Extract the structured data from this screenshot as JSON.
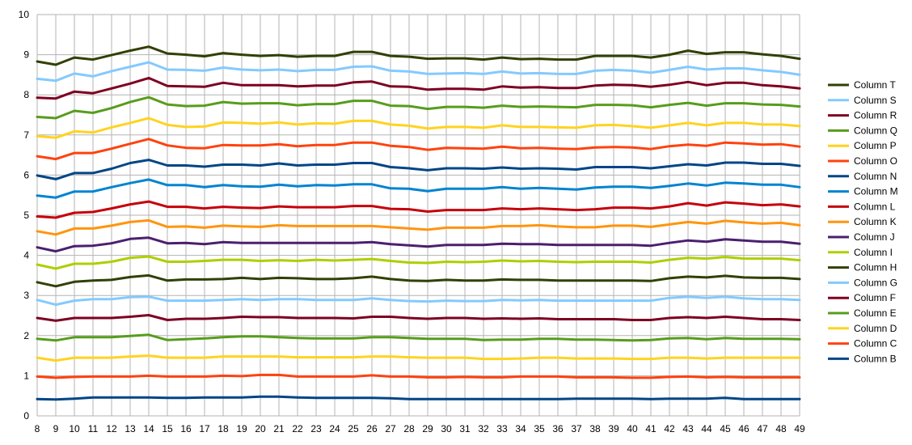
{
  "chart_data": {
    "type": "line",
    "title": "",
    "xlabel": "",
    "ylabel": "",
    "x": [
      8,
      9,
      10,
      11,
      12,
      13,
      14,
      15,
      16,
      17,
      18,
      19,
      20,
      21,
      22,
      23,
      24,
      25,
      26,
      27,
      28,
      29,
      30,
      31,
      32,
      33,
      34,
      35,
      36,
      37,
      38,
      39,
      40,
      41,
      42,
      43,
      44,
      45,
      46,
      47,
      48,
      49
    ],
    "ylim": [
      0,
      10
    ],
    "yticks": [
      0,
      1,
      2,
      3,
      4,
      5,
      6,
      7,
      8,
      9,
      10
    ],
    "grid": true,
    "legend_position": "right",
    "series": [
      {
        "name": "Column T",
        "color": "#314004",
        "values": [
          8.83,
          8.75,
          8.93,
          8.88,
          8.99,
          9.1,
          9.2,
          9.03,
          9.0,
          8.96,
          9.04,
          9.0,
          8.97,
          8.99,
          8.95,
          8.97,
          8.97,
          9.07,
          9.07,
          8.97,
          8.95,
          8.9,
          8.91,
          8.91,
          8.88,
          8.93,
          8.89,
          8.9,
          8.88,
          8.88,
          8.97,
          8.97,
          8.97,
          8.93,
          9.0,
          9.1,
          9.02,
          9.06,
          9.06,
          9.01,
          8.97,
          8.9
        ]
      },
      {
        "name": "Column S",
        "color": "#83caff",
        "values": [
          8.4,
          8.35,
          8.53,
          8.46,
          8.59,
          8.7,
          8.81,
          8.63,
          8.62,
          8.6,
          8.68,
          8.63,
          8.61,
          8.63,
          8.59,
          8.62,
          8.62,
          8.7,
          8.71,
          8.6,
          8.58,
          8.52,
          8.53,
          8.54,
          8.52,
          8.58,
          8.53,
          8.54,
          8.52,
          8.52,
          8.6,
          8.62,
          8.6,
          8.55,
          8.62,
          8.7,
          8.63,
          8.66,
          8.66,
          8.61,
          8.57,
          8.5
        ]
      },
      {
        "name": "Column R",
        "color": "#7e0021",
        "values": [
          7.93,
          7.91,
          8.08,
          8.04,
          8.16,
          8.28,
          8.42,
          8.22,
          8.21,
          8.2,
          8.3,
          8.24,
          8.24,
          8.24,
          8.21,
          8.23,
          8.23,
          8.31,
          8.33,
          8.21,
          8.2,
          8.13,
          8.15,
          8.15,
          8.13,
          8.21,
          8.18,
          8.19,
          8.17,
          8.17,
          8.23,
          8.25,
          8.24,
          8.2,
          8.25,
          8.32,
          8.24,
          8.3,
          8.3,
          8.24,
          8.21,
          8.16
        ]
      },
      {
        "name": "Column Q",
        "color": "#579d1c",
        "values": [
          7.45,
          7.42,
          7.6,
          7.55,
          7.67,
          7.82,
          7.94,
          7.76,
          7.72,
          7.73,
          7.82,
          7.78,
          7.79,
          7.79,
          7.74,
          7.77,
          7.77,
          7.85,
          7.85,
          7.73,
          7.72,
          7.65,
          7.7,
          7.7,
          7.68,
          7.73,
          7.7,
          7.71,
          7.7,
          7.69,
          7.75,
          7.75,
          7.74,
          7.69,
          7.75,
          7.8,
          7.73,
          7.79,
          7.79,
          7.76,
          7.75,
          7.71
        ]
      },
      {
        "name": "Column P",
        "color": "#ffd320",
        "values": [
          6.97,
          6.93,
          7.09,
          7.06,
          7.19,
          7.3,
          7.42,
          7.25,
          7.2,
          7.21,
          7.31,
          7.3,
          7.28,
          7.31,
          7.26,
          7.29,
          7.28,
          7.35,
          7.35,
          7.26,
          7.23,
          7.16,
          7.2,
          7.2,
          7.18,
          7.24,
          7.2,
          7.2,
          7.19,
          7.18,
          7.24,
          7.25,
          7.22,
          7.18,
          7.24,
          7.3,
          7.24,
          7.3,
          7.3,
          7.26,
          7.26,
          7.22
        ]
      },
      {
        "name": "Column O",
        "color": "#ff420e",
        "values": [
          6.47,
          6.4,
          6.55,
          6.55,
          6.66,
          6.78,
          6.9,
          6.74,
          6.68,
          6.67,
          6.75,
          6.74,
          6.74,
          6.77,
          6.72,
          6.75,
          6.75,
          6.81,
          6.81,
          6.73,
          6.7,
          6.63,
          6.68,
          6.67,
          6.66,
          6.71,
          6.67,
          6.68,
          6.66,
          6.65,
          6.69,
          6.7,
          6.69,
          6.65,
          6.72,
          6.76,
          6.73,
          6.81,
          6.79,
          6.76,
          6.77,
          6.71
        ]
      },
      {
        "name": "Column N",
        "color": "#004586",
        "values": [
          5.99,
          5.9,
          6.05,
          6.05,
          6.16,
          6.3,
          6.38,
          6.24,
          6.24,
          6.21,
          6.26,
          6.26,
          6.24,
          6.29,
          6.24,
          6.26,
          6.26,
          6.3,
          6.3,
          6.2,
          6.17,
          6.12,
          6.17,
          6.17,
          6.16,
          6.19,
          6.16,
          6.17,
          6.16,
          6.14,
          6.2,
          6.2,
          6.2,
          6.17,
          6.22,
          6.27,
          6.24,
          6.31,
          6.31,
          6.28,
          6.28,
          6.23
        ]
      },
      {
        "name": "Column M",
        "color": "#0084d1",
        "values": [
          5.49,
          5.44,
          5.59,
          5.59,
          5.7,
          5.8,
          5.89,
          5.75,
          5.75,
          5.7,
          5.75,
          5.72,
          5.71,
          5.76,
          5.72,
          5.75,
          5.74,
          5.77,
          5.77,
          5.67,
          5.66,
          5.6,
          5.66,
          5.66,
          5.66,
          5.7,
          5.66,
          5.68,
          5.66,
          5.64,
          5.69,
          5.71,
          5.71,
          5.68,
          5.73,
          5.79,
          5.74,
          5.81,
          5.79,
          5.76,
          5.76,
          5.7
        ]
      },
      {
        "name": "Column L",
        "color": "#c5000b",
        "values": [
          4.97,
          4.94,
          5.06,
          5.08,
          5.17,
          5.27,
          5.34,
          5.21,
          5.21,
          5.17,
          5.21,
          5.19,
          5.18,
          5.22,
          5.2,
          5.2,
          5.2,
          5.23,
          5.23,
          5.16,
          5.15,
          5.09,
          5.13,
          5.13,
          5.13,
          5.17,
          5.15,
          5.17,
          5.15,
          5.13,
          5.15,
          5.19,
          5.19,
          5.17,
          5.22,
          5.3,
          5.24,
          5.32,
          5.29,
          5.25,
          5.27,
          5.22
        ]
      },
      {
        "name": "Column K",
        "color": "#ff950e",
        "values": [
          4.6,
          4.52,
          4.67,
          4.67,
          4.74,
          4.83,
          4.87,
          4.71,
          4.72,
          4.69,
          4.74,
          4.72,
          4.71,
          4.75,
          4.73,
          4.73,
          4.73,
          4.73,
          4.73,
          4.7,
          4.67,
          4.64,
          4.69,
          4.69,
          4.69,
          4.73,
          4.73,
          4.75,
          4.72,
          4.7,
          4.7,
          4.74,
          4.74,
          4.71,
          4.77,
          4.83,
          4.79,
          4.86,
          4.82,
          4.79,
          4.81,
          4.75
        ]
      },
      {
        "name": "Column J",
        "color": "#4b1f6f",
        "values": [
          4.2,
          4.1,
          4.23,
          4.24,
          4.3,
          4.41,
          4.44,
          4.3,
          4.31,
          4.28,
          4.33,
          4.31,
          4.31,
          4.31,
          4.31,
          4.31,
          4.31,
          4.31,
          4.33,
          4.28,
          4.25,
          4.22,
          4.26,
          4.26,
          4.26,
          4.29,
          4.28,
          4.28,
          4.26,
          4.26,
          4.26,
          4.26,
          4.26,
          4.24,
          4.31,
          4.37,
          4.34,
          4.4,
          4.37,
          4.34,
          4.34,
          4.29
        ]
      },
      {
        "name": "Column I",
        "color": "#aecf00",
        "values": [
          3.77,
          3.67,
          3.79,
          3.79,
          3.84,
          3.94,
          3.97,
          3.84,
          3.84,
          3.86,
          3.89,
          3.89,
          3.86,
          3.88,
          3.86,
          3.89,
          3.87,
          3.89,
          3.91,
          3.86,
          3.82,
          3.81,
          3.84,
          3.83,
          3.84,
          3.87,
          3.85,
          3.86,
          3.84,
          3.83,
          3.84,
          3.84,
          3.84,
          3.82,
          3.89,
          3.94,
          3.92,
          3.96,
          3.92,
          3.92,
          3.92,
          3.88
        ]
      },
      {
        "name": "Column H",
        "color": "#314004",
        "values": [
          3.33,
          3.23,
          3.34,
          3.37,
          3.39,
          3.46,
          3.5,
          3.37,
          3.4,
          3.4,
          3.41,
          3.44,
          3.41,
          3.44,
          3.43,
          3.41,
          3.41,
          3.43,
          3.47,
          3.41,
          3.37,
          3.36,
          3.39,
          3.37,
          3.37,
          3.4,
          3.39,
          3.39,
          3.37,
          3.37,
          3.37,
          3.37,
          3.37,
          3.36,
          3.43,
          3.47,
          3.45,
          3.49,
          3.45,
          3.44,
          3.44,
          3.41
        ]
      },
      {
        "name": "Column G",
        "color": "#83caff",
        "values": [
          2.89,
          2.77,
          2.87,
          2.91,
          2.91,
          2.96,
          2.97,
          2.87,
          2.87,
          2.87,
          2.89,
          2.91,
          2.89,
          2.91,
          2.91,
          2.89,
          2.89,
          2.89,
          2.93,
          2.89,
          2.86,
          2.85,
          2.87,
          2.86,
          2.86,
          2.89,
          2.88,
          2.89,
          2.87,
          2.87,
          2.87,
          2.87,
          2.87,
          2.87,
          2.94,
          2.97,
          2.94,
          2.97,
          2.93,
          2.91,
          2.91,
          2.89
        ]
      },
      {
        "name": "Column F",
        "color": "#7e0021",
        "values": [
          2.44,
          2.37,
          2.44,
          2.44,
          2.44,
          2.47,
          2.51,
          2.39,
          2.42,
          2.42,
          2.44,
          2.47,
          2.46,
          2.46,
          2.44,
          2.44,
          2.44,
          2.43,
          2.47,
          2.47,
          2.44,
          2.42,
          2.44,
          2.44,
          2.42,
          2.43,
          2.42,
          2.43,
          2.41,
          2.41,
          2.41,
          2.41,
          2.39,
          2.39,
          2.44,
          2.46,
          2.44,
          2.47,
          2.44,
          2.41,
          2.41,
          2.39
        ]
      },
      {
        "name": "Column E",
        "color": "#579d1c",
        "values": [
          1.92,
          1.88,
          1.96,
          1.96,
          1.96,
          1.99,
          2.02,
          1.89,
          1.91,
          1.93,
          1.96,
          1.98,
          1.98,
          1.96,
          1.94,
          1.93,
          1.93,
          1.93,
          1.96,
          1.96,
          1.94,
          1.92,
          1.92,
          1.92,
          1.89,
          1.9,
          1.9,
          1.92,
          1.92,
          1.9,
          1.9,
          1.89,
          1.88,
          1.89,
          1.93,
          1.94,
          1.91,
          1.94,
          1.92,
          1.92,
          1.92,
          1.91
        ]
      },
      {
        "name": "Column D",
        "color": "#ffd320",
        "values": [
          1.45,
          1.38,
          1.45,
          1.45,
          1.45,
          1.48,
          1.5,
          1.45,
          1.45,
          1.45,
          1.48,
          1.48,
          1.48,
          1.48,
          1.46,
          1.46,
          1.46,
          1.46,
          1.48,
          1.48,
          1.46,
          1.45,
          1.45,
          1.45,
          1.42,
          1.42,
          1.43,
          1.45,
          1.45,
          1.43,
          1.43,
          1.43,
          1.42,
          1.42,
          1.45,
          1.45,
          1.43,
          1.45,
          1.45,
          1.45,
          1.45,
          1.45
        ]
      },
      {
        "name": "Column C",
        "color": "#ff420e",
        "values": [
          0.98,
          0.95,
          0.97,
          0.98,
          0.98,
          0.98,
          1.0,
          0.98,
          0.98,
          0.98,
          1.0,
          0.99,
          1.02,
          1.02,
          0.98,
          0.98,
          0.98,
          0.98,
          1.01,
          0.98,
          0.98,
          0.96,
          0.96,
          0.97,
          0.96,
          0.96,
          0.98,
          0.98,
          0.98,
          0.96,
          0.96,
          0.96,
          0.95,
          0.95,
          0.97,
          0.98,
          0.96,
          0.97,
          0.96,
          0.96,
          0.96,
          0.96
        ]
      },
      {
        "name": "Column B",
        "color": "#004586",
        "values": [
          0.42,
          0.41,
          0.43,
          0.46,
          0.46,
          0.46,
          0.46,
          0.45,
          0.45,
          0.46,
          0.46,
          0.46,
          0.48,
          0.48,
          0.46,
          0.45,
          0.45,
          0.45,
          0.45,
          0.44,
          0.42,
          0.42,
          0.42,
          0.42,
          0.42,
          0.42,
          0.42,
          0.42,
          0.42,
          0.43,
          0.43,
          0.43,
          0.43,
          0.42,
          0.43,
          0.43,
          0.43,
          0.45,
          0.42,
          0.42,
          0.42,
          0.42
        ]
      }
    ]
  }
}
